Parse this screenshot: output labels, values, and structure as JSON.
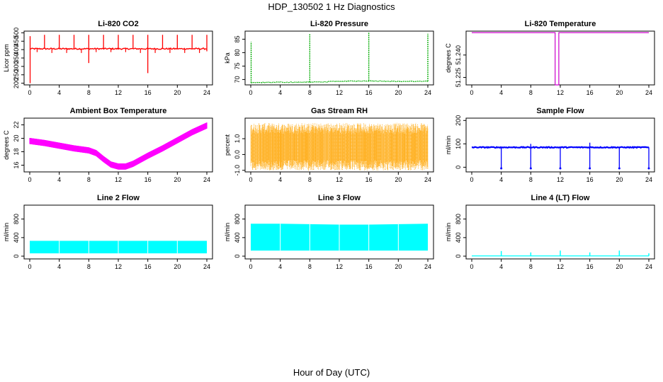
{
  "figure": {
    "title": "HDP_130502  1 Hz Diagnostics",
    "xlabel": "Hour of Day (UTC)"
  },
  "chart_data": [
    {
      "id": "co2",
      "type": "line",
      "title": "Li-820 CO2",
      "ylabel": "Licor ppm",
      "xlim": [
        0,
        24
      ],
      "ylim": [
        190,
        510
      ],
      "xticks": [
        0,
        4,
        8,
        12,
        16,
        20,
        24
      ],
      "yticks": [
        200,
        250,
        300,
        350,
        400,
        450,
        500
      ],
      "color": "#ff0000",
      "series": [
        {
          "base": 405,
          "noise": 8,
          "spikes_up": [
            [
              0.05,
              480
            ],
            [
              2,
              488
            ],
            [
              4,
              488
            ],
            [
              6,
              488
            ],
            [
              8,
              488
            ],
            [
              10,
              488
            ],
            [
              12,
              488
            ],
            [
              14,
              488
            ],
            [
              16,
              488
            ],
            [
              18,
              488
            ],
            [
              20,
              488
            ],
            [
              22,
              488
            ],
            [
              24,
              488
            ]
          ],
          "spikes_down": [
            [
              0.05,
              200
            ],
            [
              8,
              320
            ],
            [
              16,
              260
            ],
            [
              24,
              390
            ]
          ],
          "dips": [
            [
              1,
              385
            ],
            [
              3,
              380
            ],
            [
              5,
              380
            ],
            [
              7,
              380
            ],
            [
              9,
              385
            ],
            [
              11,
              385
            ],
            [
              13,
              385
            ],
            [
              15,
              380
            ],
            [
              17,
              380
            ],
            [
              19,
              380
            ],
            [
              21,
              380
            ],
            [
              23,
              380
            ]
          ]
        }
      ]
    },
    {
      "id": "pressure",
      "type": "line",
      "title": "Li-820 Pressure",
      "ylabel": "kPa",
      "xlim": [
        0,
        24
      ],
      "ylim": [
        68,
        88
      ],
      "xticks": [
        0,
        4,
        8,
        12,
        16,
        20,
        24
      ],
      "yticks": [
        70,
        75,
        80,
        85
      ],
      "color": "#00aa00",
      "series": [
        {
          "x": [
            0,
            0.3,
            4,
            8,
            12,
            16,
            20,
            24
          ],
          "y": [
            68.8,
            68.8,
            69.0,
            69.0,
            69.3,
            69.5,
            69.3,
            69.3
          ],
          "spikes_up": [
            [
              0.05,
              84
            ],
            [
              8,
              87
            ],
            [
              16,
              87.5
            ],
            [
              24,
              87
            ]
          ]
        }
      ]
    },
    {
      "id": "temp",
      "type": "line",
      "title": "Li-820 Temperature",
      "ylabel": "degrees C",
      "xlim": [
        0,
        24
      ],
      "ylim": [
        51.22,
        51.256
      ],
      "xticks": [
        0,
        4,
        8,
        12,
        16,
        20,
        24
      ],
      "yticks": [
        51.225,
        51.24
      ],
      "ytick_labels": [
        "51.225",
        "51.240"
      ],
      "color": "#cc00cc",
      "series": [
        {
          "level": 51.255,
          "drop_at": [
            11.3,
            11.8
          ],
          "drop_to": 51.22
        }
      ]
    },
    {
      "id": "ambient",
      "type": "line",
      "title": "Ambient Box Temperature",
      "ylabel": "degrees C",
      "xlim": [
        0,
        24
      ],
      "ylim": [
        15,
        23
      ],
      "xticks": [
        0,
        4,
        8,
        12,
        16,
        20,
        24
      ],
      "yticks": [
        16,
        18,
        20,
        22
      ],
      "color": "#ff00ff",
      "series": [
        {
          "x": [
            0,
            2,
            4,
            6,
            8,
            9,
            10,
            11,
            12,
            13,
            14,
            15,
            16,
            18,
            20,
            22,
            24
          ],
          "y": [
            19.6,
            19.3,
            18.9,
            18.5,
            18.2,
            17.8,
            16.9,
            16.1,
            15.8,
            15.8,
            16.2,
            16.8,
            17.4,
            18.5,
            19.7,
            20.9,
            21.9
          ],
          "noise": 0.45
        }
      ]
    },
    {
      "id": "rh",
      "type": "line",
      "title": "Gas Stream RH",
      "ylabel": "percent",
      "xlim": [
        0,
        24
      ],
      "ylim": [
        -1.1,
        2.3
      ],
      "xticks": [
        0,
        4,
        8,
        12,
        16,
        20,
        24
      ],
      "yticks": [
        -1.0,
        0.0,
        1.0
      ],
      "ytick_labels": [
        "-1.0",
        "0.0",
        "1.0"
      ],
      "color": "#ffa500",
      "series": [
        {
          "center": 0.5,
          "spread": 1.5
        }
      ]
    },
    {
      "id": "sample",
      "type": "line",
      "title": "Sample Flow",
      "ylabel": "ml/min",
      "xlim": [
        0,
        24
      ],
      "ylim": [
        -20,
        210
      ],
      "xticks": [
        0,
        4,
        8,
        12,
        16,
        20,
        24
      ],
      "yticks": [
        0,
        100,
        200
      ],
      "color": "#0000ff",
      "series": [
        {
          "base": 85,
          "noise": 4,
          "drops": [
            [
              4,
              -5
            ],
            [
              8,
              -5
            ],
            [
              12,
              -5
            ],
            [
              16,
              -5
            ],
            [
              20,
              -5
            ],
            [
              24,
              -5
            ]
          ],
          "bumps": [
            [
              8,
              100
            ],
            [
              16,
              105
            ]
          ]
        }
      ]
    },
    {
      "id": "line2",
      "type": "area",
      "title": "Line 2 Flow",
      "ylabel": "ml/min",
      "xlim": [
        0,
        24
      ],
      "ylim": [
        -60,
        1100
      ],
      "xticks": [
        0,
        4,
        8,
        12,
        16,
        20,
        24
      ],
      "yticks": [
        0,
        400,
        800
      ],
      "color": "#00ffff",
      "series": [
        {
          "low": 60,
          "high": 330,
          "gaps": [
            4,
            8,
            12,
            16,
            20
          ]
        }
      ]
    },
    {
      "id": "line3",
      "type": "area",
      "title": "Line 3 Flow",
      "ylabel": "ml/min",
      "xlim": [
        0,
        24
      ],
      "ylim": [
        -60,
        1100
      ],
      "xticks": [
        0,
        4,
        8,
        12,
        16,
        20,
        24
      ],
      "yticks": [
        0,
        400,
        800
      ],
      "color": "#00ffff",
      "series": [
        {
          "x": [
            0,
            4,
            8,
            12,
            16,
            20,
            24
          ],
          "low": [
            120,
            120,
            120,
            120,
            120,
            120,
            120
          ],
          "high": [
            700,
            700,
            690,
            680,
            680,
            690,
            700
          ],
          "gaps": [
            4,
            8,
            12,
            16,
            20
          ]
        }
      ]
    },
    {
      "id": "line4",
      "type": "line",
      "title": "Line 4 (LT) Flow",
      "ylabel": "ml/min",
      "xlim": [
        0,
        24
      ],
      "ylim": [
        -60,
        1100
      ],
      "xticks": [
        0,
        4,
        8,
        12,
        16,
        20,
        24
      ],
      "yticks": [
        0,
        400,
        800
      ],
      "color": "#00ffff",
      "series": [
        {
          "base": 5,
          "spikes_up": [
            [
              4,
              110
            ],
            [
              8,
              80
            ],
            [
              12,
              120
            ],
            [
              16,
              80
            ],
            [
              20,
              120
            ],
            [
              24,
              60
            ]
          ]
        }
      ]
    }
  ]
}
